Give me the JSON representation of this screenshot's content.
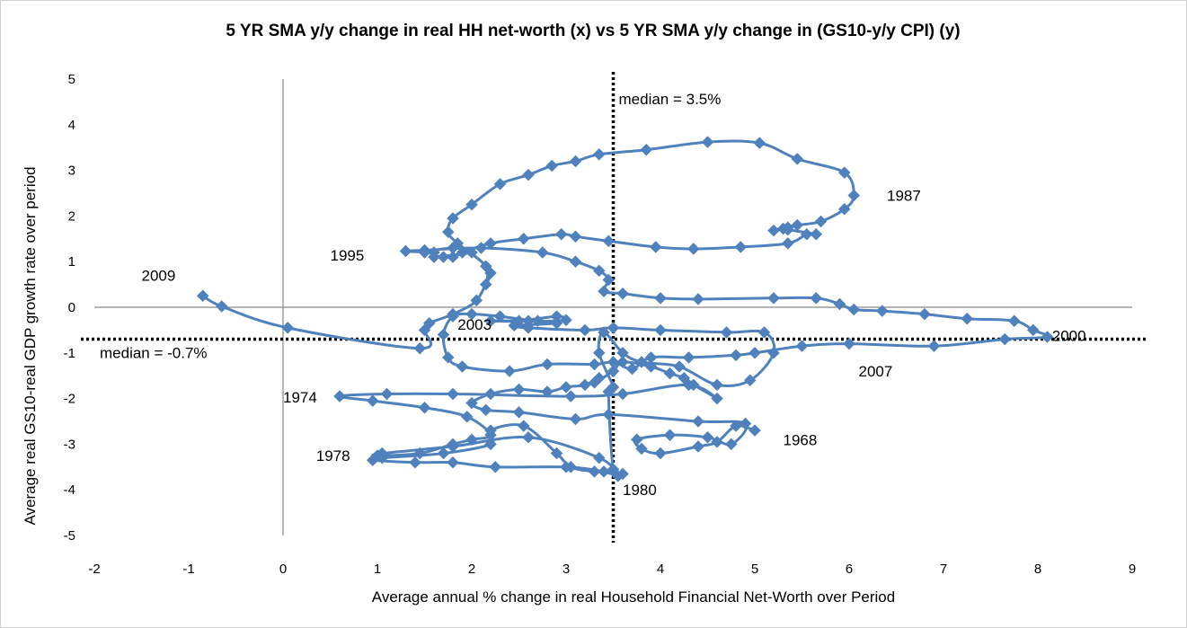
{
  "chart_data": {
    "type": "scatter",
    "title": "5 YR SMA y/y change in real HH net-worth (x) vs 5 YR SMA y/y change in (GS10-y/y CPI) (y)",
    "xlabel": "Average annual % change in real Household Financial Net-Worth over Period",
    "ylabel": "Average real GS10-real GDP growth rate over period",
    "xlim": [
      -2,
      9
    ],
    "ylim": [
      -5,
      5
    ],
    "x_ticks": [
      "-2",
      "-1",
      "0",
      "1",
      "2",
      "3",
      "4",
      "5",
      "6",
      "7",
      "8",
      "9"
    ],
    "y_ticks": [
      "5",
      "4",
      "3",
      "2",
      "1",
      "0",
      "-1",
      "-2",
      "-3",
      "-4",
      "-5"
    ],
    "grid": "none",
    "reference_lines": [
      {
        "axis": "x",
        "value": 3.5,
        "label": "median = 3.5%"
      },
      {
        "axis": "y",
        "value": -0.7,
        "label": "median = -0.7%"
      }
    ],
    "annotations": [
      {
        "text": "1968",
        "x": 5.3,
        "y": -2.9
      },
      {
        "text": "1974",
        "x": 0.0,
        "y": -1.97
      },
      {
        "text": "1978",
        "x": 0.35,
        "y": -3.25
      },
      {
        "text": "1980",
        "x": 3.6,
        "y": -4.0
      },
      {
        "text": "1987",
        "x": 6.4,
        "y": 2.45
      },
      {
        "text": "1995",
        "x": 0.5,
        "y": 1.14
      },
      {
        "text": "2000",
        "x": 8.15,
        "y": -0.62
      },
      {
        "text": "2003",
        "x": 1.85,
        "y": -0.37
      },
      {
        "text": "2007",
        "x": 6.1,
        "y": -1.4
      },
      {
        "text": "2009",
        "x": -1.5,
        "y": 0.7
      }
    ],
    "series": [
      {
        "name": "5 YR SMA",
        "color": "#4F81BD",
        "points": [
          [
            5.0,
            -2.7
          ],
          [
            4.8,
            -2.6
          ],
          [
            4.6,
            -2.95
          ],
          [
            4.4,
            -3.05
          ],
          [
            4.0,
            -3.2
          ],
          [
            3.8,
            -3.1
          ],
          [
            3.75,
            -2.9
          ],
          [
            4.1,
            -2.8
          ],
          [
            4.5,
            -2.85
          ],
          [
            4.75,
            -3.0
          ],
          [
            4.9,
            -2.55
          ],
          [
            4.4,
            -2.5
          ],
          [
            3.45,
            -2.35
          ],
          [
            3.1,
            -2.45
          ],
          [
            2.5,
            -2.3
          ],
          [
            2.15,
            -2.25
          ],
          [
            2.0,
            -2.1
          ],
          [
            2.2,
            -1.9
          ],
          [
            2.5,
            -1.8
          ],
          [
            2.8,
            -1.85
          ],
          [
            3.0,
            -1.75
          ],
          [
            3.2,
            -1.7
          ],
          [
            3.35,
            -1.55
          ],
          [
            3.3,
            -1.65
          ],
          [
            3.5,
            -1.4
          ],
          [
            3.6,
            -1.2
          ],
          [
            3.9,
            -1.3
          ],
          [
            4.1,
            -1.45
          ],
          [
            4.25,
            -1.55
          ],
          [
            4.35,
            -1.7
          ],
          [
            4.6,
            -2.0
          ],
          [
            4.3,
            -1.7
          ],
          [
            3.6,
            -1.9
          ],
          [
            3.05,
            -1.95
          ],
          [
            1.8,
            -1.9
          ],
          [
            1.1,
            -1.9
          ],
          [
            0.6,
            -1.95
          ],
          [
            0.95,
            -2.05
          ],
          [
            1.5,
            -2.2
          ],
          [
            1.95,
            -2.4
          ],
          [
            2.2,
            -2.8
          ],
          [
            2.0,
            -2.9
          ],
          [
            1.8,
            -3.0
          ],
          [
            1.45,
            -3.2
          ],
          [
            1.0,
            -3.25
          ],
          [
            1.05,
            -3.2
          ],
          [
            1.8,
            -3.05
          ],
          [
            2.6,
            -2.85
          ],
          [
            3.35,
            -3.3
          ],
          [
            3.55,
            -3.7
          ],
          [
            3.4,
            -3.6
          ],
          [
            3.0,
            -3.5
          ],
          [
            2.25,
            -3.5
          ],
          [
            1.8,
            -3.4
          ],
          [
            1.4,
            -3.4
          ],
          [
            0.95,
            -3.35
          ],
          [
            1.05,
            -3.3
          ],
          [
            1.7,
            -3.2
          ],
          [
            2.2,
            -3.0
          ],
          [
            2.2,
            -2.7
          ],
          [
            2.55,
            -2.6
          ],
          [
            2.9,
            -3.2
          ],
          [
            3.05,
            -3.5
          ],
          [
            3.3,
            -3.6
          ],
          [
            3.6,
            -3.65
          ],
          [
            3.5,
            -3.55
          ],
          [
            3.45,
            -1.85
          ],
          [
            3.5,
            -1.75
          ],
          [
            3.35,
            -1.0
          ],
          [
            3.4,
            -0.55
          ],
          [
            3.6,
            -1.0
          ],
          [
            3.8,
            -1.2
          ],
          [
            4.2,
            -1.3
          ],
          [
            4.6,
            -1.7
          ],
          [
            4.95,
            -1.6
          ],
          [
            5.2,
            -1.0
          ],
          [
            5.1,
            -0.55
          ],
          [
            4.7,
            -0.55
          ],
          [
            4.0,
            -0.5
          ],
          [
            3.5,
            -0.45
          ],
          [
            3.2,
            -0.5
          ],
          [
            2.6,
            -0.45
          ],
          [
            2.45,
            -0.4
          ],
          [
            2.9,
            -0.35
          ],
          [
            2.6,
            -0.3
          ],
          [
            2.2,
            -0.3
          ],
          [
            2.5,
            -0.3
          ],
          [
            2.9,
            -0.2
          ],
          [
            3.0,
            -0.28
          ],
          [
            2.7,
            -0.3
          ],
          [
            2.3,
            -0.2
          ],
          [
            2.0,
            -0.15
          ],
          [
            1.8,
            -0.2
          ],
          [
            1.7,
            -0.6
          ],
          [
            1.75,
            -1.1
          ],
          [
            1.9,
            -1.3
          ],
          [
            2.4,
            -1.4
          ],
          [
            2.8,
            -1.25
          ],
          [
            3.3,
            -1.25
          ],
          [
            3.5,
            -1.2
          ],
          [
            3.7,
            -1.35
          ],
          [
            3.9,
            -1.1
          ],
          [
            4.3,
            -1.1
          ],
          [
            4.8,
            -1.05
          ],
          [
            5.0,
            -1.0
          ],
          [
            5.5,
            -0.85
          ],
          [
            6.0,
            -0.8
          ],
          [
            6.9,
            -0.85
          ],
          [
            7.65,
            -0.7
          ],
          [
            8.1,
            -0.65
          ],
          [
            7.95,
            -0.5
          ],
          [
            7.75,
            -0.3
          ],
          [
            7.25,
            -0.25
          ],
          [
            6.8,
            -0.15
          ],
          [
            6.35,
            -0.08
          ],
          [
            6.05,
            -0.05
          ],
          [
            5.9,
            0.07
          ],
          [
            5.65,
            0.2
          ],
          [
            5.2,
            0.2
          ],
          [
            4.4,
            0.18
          ],
          [
            4.0,
            0.2
          ],
          [
            3.6,
            0.3
          ],
          [
            3.4,
            0.35
          ],
          [
            3.45,
            0.6
          ],
          [
            3.35,
            0.8
          ],
          [
            3.1,
            1.0
          ],
          [
            2.75,
            1.2
          ],
          [
            2.1,
            1.3
          ],
          [
            1.5,
            1.25
          ],
          [
            1.3,
            1.23
          ],
          [
            1.6,
            1.2
          ],
          [
            1.5,
            1.2
          ],
          [
            1.8,
            1.3
          ],
          [
            2.0,
            1.2
          ],
          [
            1.6,
            1.1
          ],
          [
            1.7,
            1.1
          ],
          [
            1.8,
            1.1
          ],
          [
            1.9,
            1.2
          ],
          [
            2.2,
            1.4
          ],
          [
            2.55,
            1.5
          ],
          [
            2.95,
            1.6
          ],
          [
            3.1,
            1.55
          ],
          [
            3.45,
            1.45
          ],
          [
            3.95,
            1.32
          ],
          [
            4.35,
            1.28
          ],
          [
            4.85,
            1.32
          ],
          [
            5.35,
            1.4
          ],
          [
            5.55,
            1.6
          ],
          [
            5.65,
            1.6
          ],
          [
            5.35,
            1.7
          ],
          [
            5.3,
            1.72
          ],
          [
            5.2,
            1.68
          ],
          [
            5.35,
            1.75
          ],
          [
            5.45,
            1.8
          ],
          [
            5.7,
            1.88
          ],
          [
            5.95,
            2.15
          ],
          [
            6.05,
            2.45
          ],
          [
            5.95,
            2.95
          ],
          [
            5.45,
            3.25
          ],
          [
            5.05,
            3.6
          ],
          [
            4.5,
            3.62
          ],
          [
            3.85,
            3.45
          ],
          [
            3.35,
            3.35
          ],
          [
            3.1,
            3.2
          ],
          [
            2.85,
            3.1
          ],
          [
            2.6,
            2.9
          ],
          [
            2.3,
            2.7
          ],
          [
            2.0,
            2.25
          ],
          [
            1.8,
            1.95
          ],
          [
            1.75,
            1.65
          ],
          [
            1.85,
            1.4
          ],
          [
            2.15,
            0.9
          ],
          [
            2.15,
            0.5
          ],
          [
            2.2,
            0.75
          ],
          [
            2.05,
            0.15
          ],
          [
            1.8,
            -0.15
          ],
          [
            1.55,
            -0.35
          ],
          [
            1.5,
            -0.5
          ],
          [
            1.45,
            -0.9
          ],
          [
            0.05,
            -0.45
          ],
          [
            -0.65,
            0.02
          ],
          [
            -0.85,
            0.25
          ]
        ]
      }
    ]
  }
}
